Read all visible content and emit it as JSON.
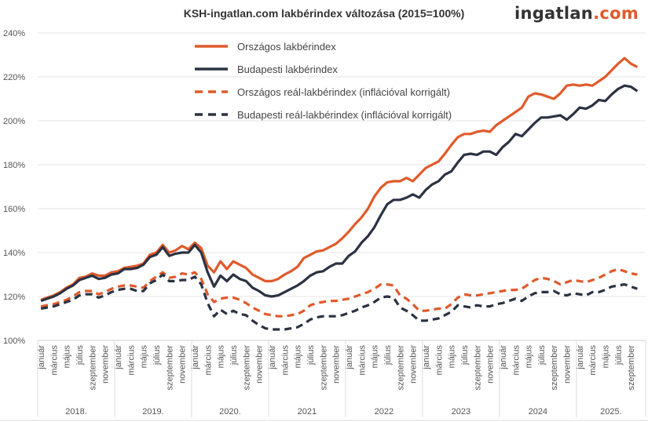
{
  "chart_data": {
    "type": "line",
    "title": "KSH-ingatlan.com lakbérindex változása (2015=100%)",
    "logo": {
      "main": "ingatlan",
      "suffix": ".com"
    },
    "ylim": [
      100,
      240
    ],
    "yticks": [
      "100%",
      "120%",
      "140%",
      "160%",
      "180%",
      "200%",
      "220%",
      "240%"
    ],
    "ytick_values": [
      100,
      120,
      140,
      160,
      180,
      200,
      220,
      240
    ],
    "grid": true,
    "legend_position": "top-left-center",
    "years": [
      "2018.",
      "2019.",
      "2020.",
      "2021",
      "2022",
      "2023",
      "2024",
      "2025."
    ],
    "month_labels": [
      "január",
      "március",
      "május",
      "július",
      "szeptember",
      "november"
    ],
    "x_range": "2018 január – 2025 október (havi)",
    "series": [
      {
        "name": "Országos lakbérindex",
        "color": "#e05a2b",
        "dash": false,
        "values": [
          118.5,
          119.5,
          120.5,
          122,
          124,
          125.5,
          128.5,
          129,
          130.5,
          129.5,
          129.5,
          131,
          131.5,
          133,
          133.5,
          134,
          135,
          139,
          140,
          143.5,
          140,
          141,
          143,
          141.5,
          144.5,
          142,
          134,
          131,
          136,
          132.5,
          136,
          134.5,
          133,
          130,
          128.5,
          127,
          127,
          128,
          130,
          131.5,
          133.5,
          137.5,
          139,
          140.5,
          141,
          142.5,
          144,
          146.5,
          149.5,
          153,
          156,
          160,
          165.5,
          169.5,
          172,
          172.5,
          172.5,
          174,
          172.5,
          175.5,
          178.5,
          180,
          181.5,
          185,
          189,
          192.5,
          194,
          194,
          195,
          195.5,
          195,
          198,
          200,
          202,
          204,
          206,
          211,
          212.5,
          212,
          211,
          210,
          212.5,
          216,
          216.5,
          216,
          216.5,
          216,
          218,
          220,
          223,
          226,
          228.5,
          226,
          224.5
        ]
      },
      {
        "name": "Budapesti lakbérindex",
        "color": "#2b3242",
        "dash": false,
        "values": [
          118,
          119,
          120,
          121.5,
          123.5,
          125,
          127.5,
          128.5,
          129.5,
          128,
          128.5,
          130,
          130.5,
          132.5,
          132.5,
          133,
          134.5,
          138,
          139,
          142.5,
          138.5,
          139.5,
          140,
          140,
          143.5,
          140,
          131,
          124.5,
          129.5,
          127,
          130,
          128,
          127,
          124,
          122.5,
          120.5,
          120,
          120.5,
          122,
          123.5,
          125,
          127,
          129.5,
          131,
          131.5,
          133.5,
          135,
          135,
          138.5,
          140.5,
          144.5,
          147.5,
          151.5,
          157,
          162,
          164,
          164,
          165,
          166.5,
          165,
          168.5,
          171,
          172.5,
          175.5,
          177,
          181,
          184.5,
          185,
          184.5,
          186,
          186,
          184.5,
          188,
          190.5,
          194,
          193,
          196,
          199,
          201.5,
          201.5,
          202,
          202.5,
          200.5,
          203,
          206,
          205.5,
          207,
          209.5,
          209,
          212,
          214.5,
          216,
          215.5,
          213.5
        ]
      },
      {
        "name": "Országos reál-lakbérindex (inflációval korrigált)",
        "color": "#e05a2b",
        "dash": true,
        "values": [
          115.5,
          116,
          116.5,
          117.5,
          118.5,
          120,
          122,
          122.5,
          122.5,
          121,
          122,
          123.5,
          124.5,
          125,
          125,
          124.5,
          124,
          127,
          129,
          131,
          128.5,
          129,
          130.5,
          130,
          131,
          128,
          121,
          117.5,
          119,
          119.5,
          119.5,
          118.5,
          117,
          115,
          113.5,
          112,
          111.5,
          111,
          111,
          111.5,
          112,
          113.5,
          116,
          117,
          117.5,
          118,
          118,
          118.5,
          119,
          120,
          121,
          122,
          123.5,
          125.5,
          125.5,
          125,
          120.5,
          119,
          116.5,
          113.5,
          113.5,
          114,
          114.5,
          114.5,
          116.5,
          119.5,
          121,
          120.5,
          120.5,
          121,
          121.5,
          122,
          122.5,
          123,
          123,
          123.5,
          125.5,
          127.5,
          128.5,
          128,
          127,
          125.5,
          126.5,
          127.5,
          127,
          126.5,
          127.5,
          128.5,
          130,
          131.5,
          132.5,
          131.5,
          130.5,
          130
        ]
      },
      {
        "name": "Budapesti reál-lakbérindex (inflációval korrigált)",
        "color": "#2b3242",
        "dash": true,
        "values": [
          114.5,
          115,
          115.5,
          116.5,
          117.5,
          118.5,
          120.5,
          121,
          121,
          119.5,
          120.5,
          122,
          123,
          123.5,
          123.5,
          122.5,
          122.5,
          126,
          127.5,
          130,
          127,
          127,
          127.5,
          127.5,
          129,
          125.5,
          117,
          111,
          114,
          112,
          113.5,
          112,
          111.5,
          109,
          107,
          105.5,
          105,
          105,
          105,
          105.5,
          106,
          107.5,
          109.5,
          110.5,
          111,
          111,
          111,
          111.5,
          112.5,
          113.5,
          115,
          116,
          117.5,
          119.5,
          120,
          119.5,
          115,
          113.5,
          111.5,
          109,
          109,
          109.5,
          110,
          111.5,
          113,
          116,
          115.5,
          115,
          116,
          115.5,
          115.5,
          116.5,
          117,
          118,
          119,
          118,
          120,
          121.5,
          122,
          122,
          122.5,
          121,
          120.5,
          121.5,
          121,
          120.5,
          122,
          122,
          123,
          124.5,
          125,
          125.5,
          124.5,
          123.5
        ]
      }
    ]
  }
}
